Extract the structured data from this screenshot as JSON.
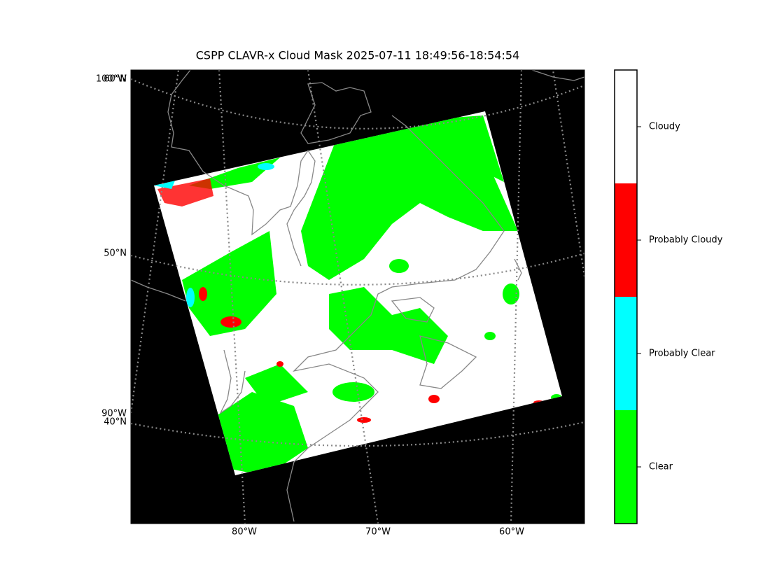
{
  "title": "CSPP CLAVR-x Cloud Mask 2025-07-11 18:49:56-18:54:54",
  "map": {
    "bottom_labels": [
      "80°W",
      "70°W",
      "60°W"
    ],
    "left_labels": [
      "100°W",
      "60°N",
      "50°N",
      "90°W",
      "40°N"
    ]
  },
  "legend": {
    "items": [
      {
        "label": "Cloudy",
        "color": "#ffffff"
      },
      {
        "label": "Probably Cloudy",
        "color": "#ff0000"
      },
      {
        "label": "Probably Clear",
        "color": "#00ffff"
      },
      {
        "label": "Clear",
        "color": "#00ff00"
      }
    ]
  }
}
